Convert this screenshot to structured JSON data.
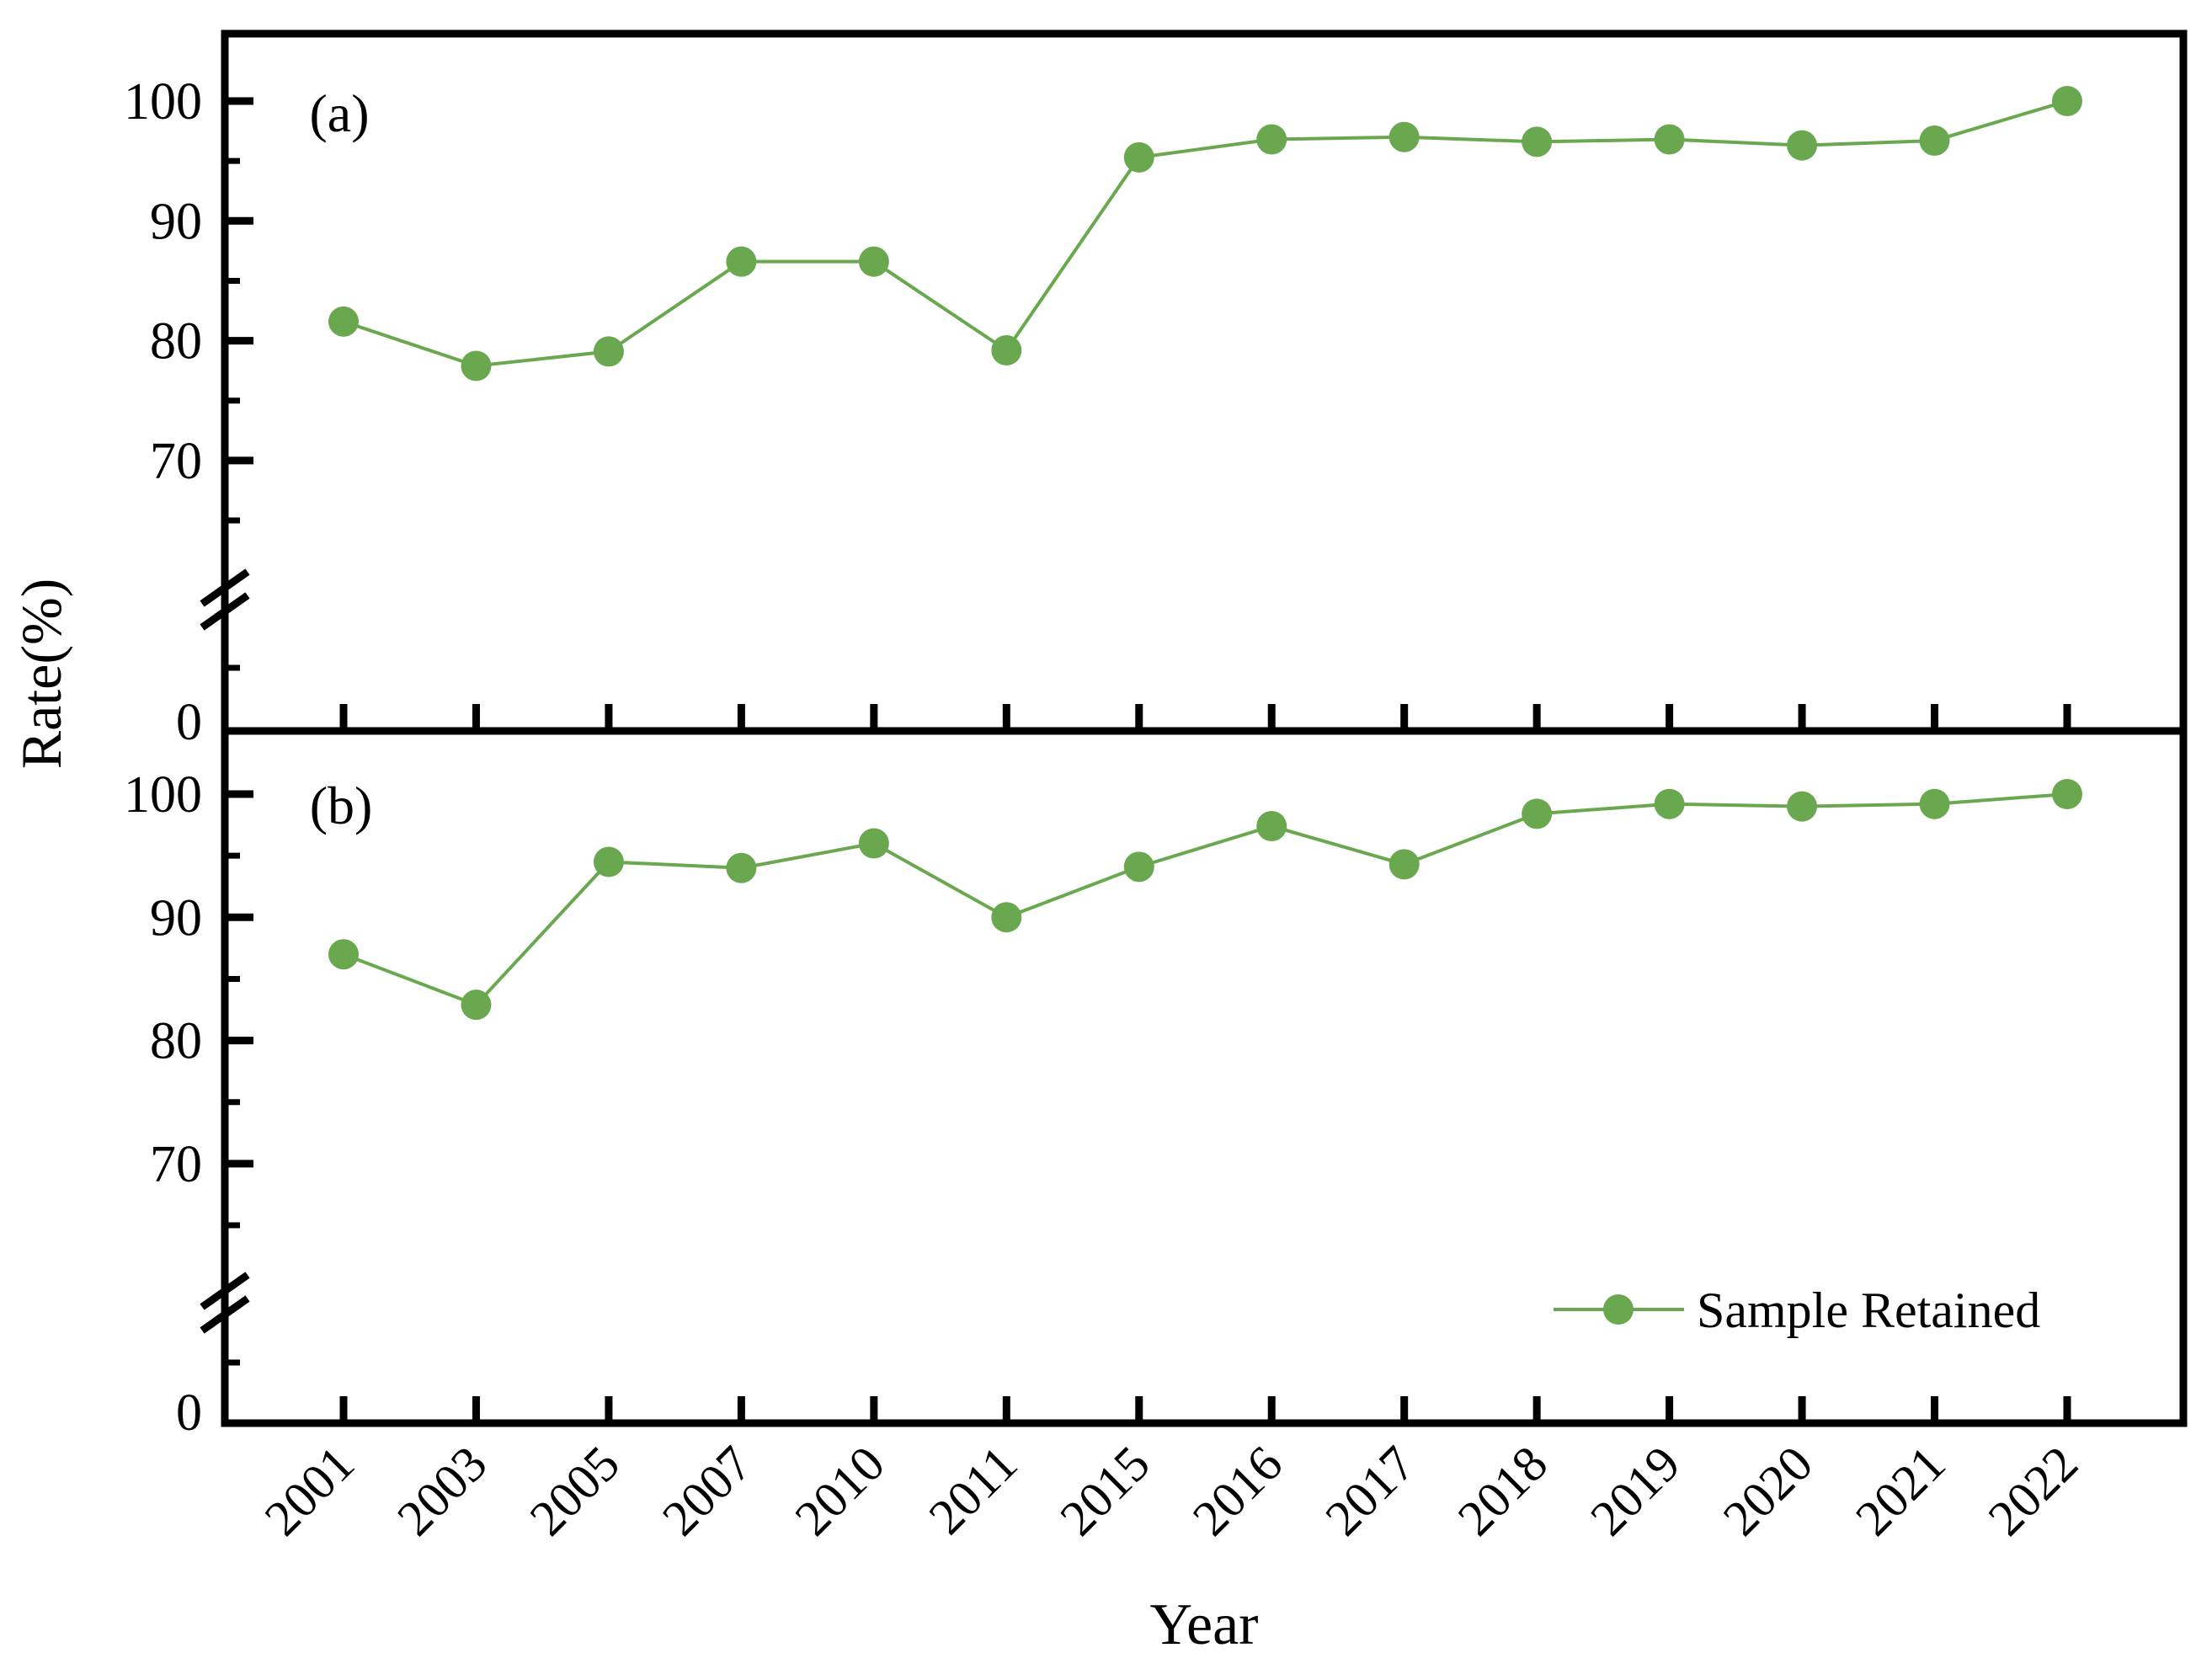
{
  "chart_data": {
    "type": "line",
    "title": "",
    "xlabel": "Year",
    "ylabel": "Rate(%)",
    "categories": [
      "2001",
      "2003",
      "2005",
      "2007",
      "2010",
      "2011",
      "2015",
      "2016",
      "2017",
      "2018",
      "2019",
      "2020",
      "2021",
      "2022"
    ],
    "legend": {
      "label": "Sample Retained",
      "position": "lower-right-of-panel-b"
    },
    "colors": {
      "series": "#6aa84f",
      "axis": "#000000",
      "background": "#ffffff"
    },
    "grid": false,
    "marker": "filled-circle",
    "y_axis_note": "broken axis: 0 shown below a break, then 65-103 linear region",
    "panels": [
      {
        "label": "(a)",
        "y_axis": {
          "major_ticks": [
            100,
            90,
            80,
            70
          ],
          "minor_ticks": [
            95,
            85,
            75,
            65
          ],
          "zero_label": "0",
          "axis_break": true,
          "ylim_linear": [
            62,
            103
          ]
        },
        "series": [
          {
            "name": "Sample Retained",
            "values": [
              81.6,
              77.9,
              79.1,
              86.6,
              86.6,
              79.2,
              95.3,
              96.8,
              97.0,
              96.6,
              96.8,
              96.3,
              96.7,
              100.0
            ]
          }
        ],
        "show_legend": false
      },
      {
        "label": "(b)",
        "y_axis": {
          "major_ticks": [
            100,
            90,
            80,
            70
          ],
          "minor_ticks": [
            95,
            85,
            75,
            65
          ],
          "zero_label": "0",
          "axis_break": true,
          "ylim_linear": [
            62,
            103
          ]
        },
        "series": [
          {
            "name": "Sample Retained",
            "values": [
              87.0,
              82.9,
              94.5,
              94.0,
              96.0,
              90.0,
              94.1,
              97.4,
              94.3,
              98.4,
              99.2,
              99.0,
              99.2,
              100.0
            ]
          }
        ],
        "show_legend": true
      }
    ]
  }
}
